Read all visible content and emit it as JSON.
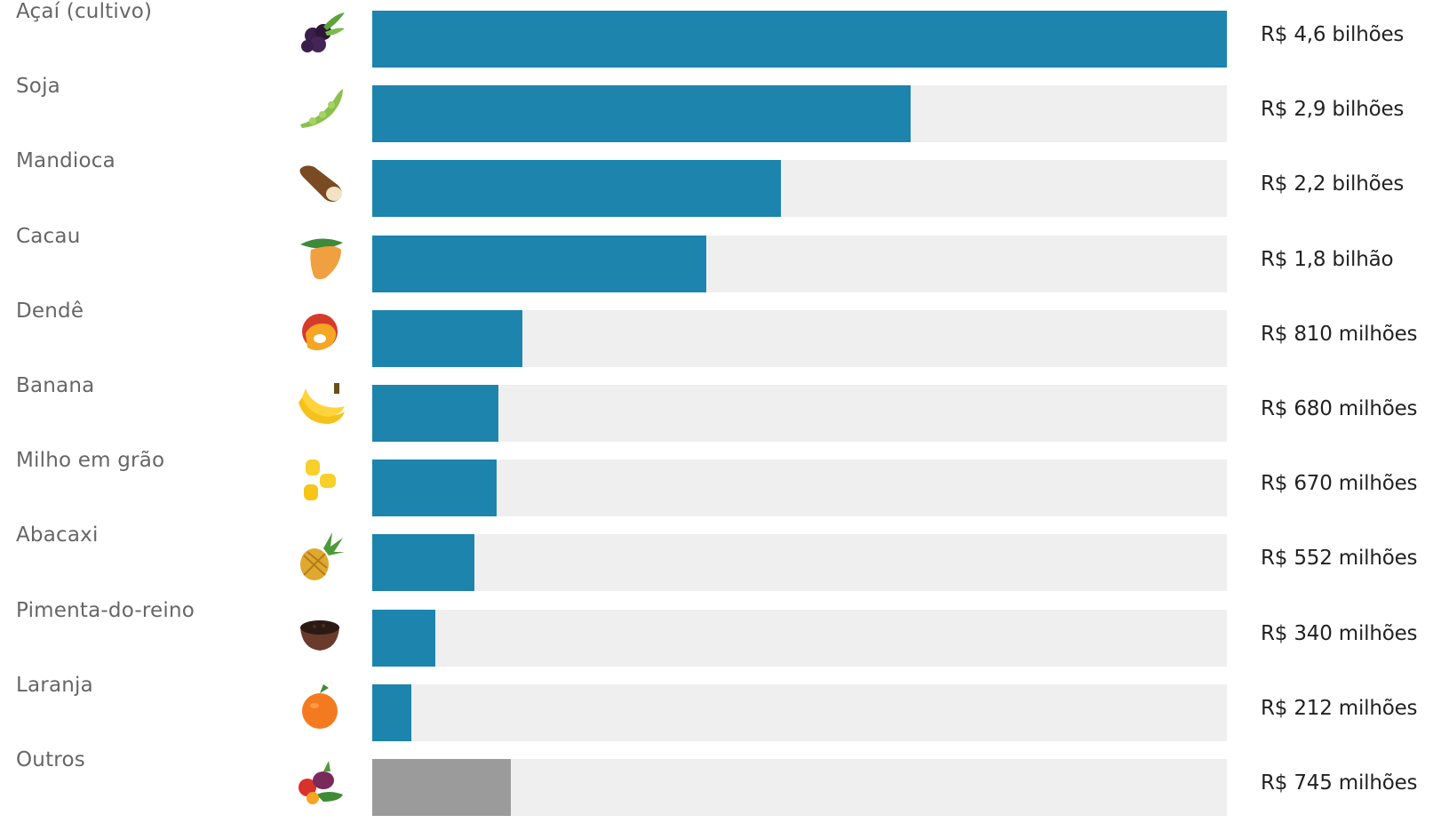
{
  "chart_data": {
    "type": "bar",
    "orientation": "horizontal",
    "categories": [
      "Açaí (cultivo)",
      "Soja",
      "Mandioca",
      "Cacau",
      "Dendê",
      "Banana",
      "Milho em grão",
      "Abacaxi",
      "Pimenta-do-reino",
      "Laranja",
      "Outros"
    ],
    "values": [
      4600,
      2900,
      2200,
      1800,
      810,
      680,
      670,
      552,
      340,
      212,
      745
    ],
    "unit": "R$ milhões",
    "value_labels": [
      "R$ 4,6 bilhões",
      "R$ 2,9 bilhões",
      "R$ 2,2 bilhões",
      "R$ 1,8 bilhão",
      "R$ 810 milhões",
      "R$ 680 milhões",
      "R$ 670 milhões",
      "R$ 552 milhões",
      "R$ 340 milhões",
      "R$ 212 milhões",
      "R$ 745 milhões"
    ],
    "icons": [
      "acai-icon",
      "soy-icon",
      "cassava-icon",
      "cacao-icon",
      "palm-fruit-icon",
      "banana-icon",
      "corn-icon",
      "pineapple-icon",
      "pepper-bowl-icon",
      "orange-icon",
      "mixed-produce-icon"
    ],
    "xlim": [
      0,
      4600
    ],
    "grid": false,
    "legend": "none",
    "colors": {
      "bar": "#1c84ad",
      "other_bar": "#9b9b9b",
      "track": "#efefef"
    }
  }
}
